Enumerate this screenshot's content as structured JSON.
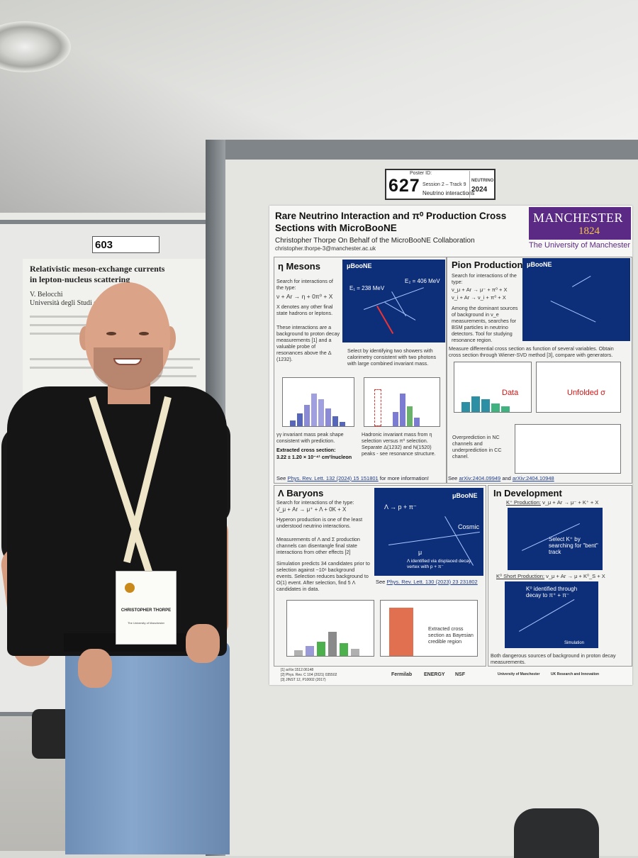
{
  "poster_board": {
    "poster_id_label": "Poster ID:",
    "poster_id": "627",
    "session": "Session 2 – Track 9",
    "track": "Neutrino interactions",
    "conference_logo_text": "NEUTRINO",
    "conference_logo_year": "2024"
  },
  "left_board": {
    "poster_id": "603",
    "title": "Relativistic meson-exchange currents in lepton-nucleus scattering",
    "author": "V. Belocchi",
    "affiliation": "Università degli Studi di Torino"
  },
  "poster": {
    "title": "Rare Neutrino Interaction and π⁰ Production Cross Sections with MicroBooNE",
    "author": "Christopher Thorpe On Behalf of the MicroBooNE Collaboration",
    "email": "christopher.thorpe-3@manchester.ac.uk",
    "logo_name": "MANCHESTER",
    "logo_year": "1824",
    "university": "The University of Manchester",
    "eta": {
      "title": "η Mesons",
      "text1": "Search for interactions of the type:",
      "formula": "ν + Ar → η + 0π⁰ + X",
      "text2": "X denotes any other final state hadrons or leptons.",
      "text3": "These interactions are a background to proton decay measurements [1] and a valuable probe of resonances above the Δ (1232).",
      "event_label_1": "E₁ = 238 MeV",
      "event_label_2": "E₂ = 406 MeV",
      "event_caption": "Select by identifying two showers with calorimetry consistent with two photons with large combined invariant mass.",
      "plot_caption_1": "γγ invariant mass peak shape consistent with prediction.",
      "plot_caption_2": "Hadronic invariant mass from η selection versus π⁰ selection. Separate Δ(1232) and N(1520) peaks - see resonance structure.",
      "xsec_label": "Extracted cross section:",
      "xsec_value": "3.22 ± 1.20 × 10⁻⁴¹ cm²/nucleon",
      "ref_prefix": "See ",
      "ref_link": "Phys. Rev. Lett. 132 (2024) 15 151801",
      "ref_suffix": " for more information!"
    },
    "pion": {
      "title": "Pion Production",
      "text1": "Search for interactions of the type:",
      "formula1": "ν_μ + Ar → μ⁻ + π⁰ + X",
      "formula2": "ν_i + Ar → ν_i + π⁰ + X",
      "text2": "Among the dominant sources of background in ν_e measurements, searches for BSM particles in neutrino detectors. Tool for studying resonance region.",
      "text3": "Measure differential cross section as function of several variables. Obtain cross section through Wiener-SVD method [3], compare with generators.",
      "label_data": "Data",
      "label_unfolded": "Unfolded σ",
      "text4": "Overprediction in NC channels and underprediction in CC chanel.",
      "ref_prefix": "See ",
      "ref_link1": "arXiv:2404.09949",
      "ref_mid": " and ",
      "ref_link2": "arXiv:2404.10948"
    },
    "lambda": {
      "title": "Λ Baryons",
      "text1": "Search for interactions of the type:",
      "formula": "ν̄_μ + Ar → μ⁺ + Λ + 0K + X",
      "text2": "Hyperon production is one of the least understood neutrino interactions.",
      "text3": "Measurements of Λ and Σ production channels can disentangle final state interactions from other effects [2]",
      "text4": "Simulation predicts 34 candidates prior to selection against ~10⁶ background events. Selection reduces background to O(1) event. After selection, find 5 Λ candidates in data.",
      "event_label_decay": "Λ → p + π⁻",
      "event_label_cosmic": "Cosmic",
      "event_label_mu": "μ",
      "event_caption": "Λ identified via displaced decay vertex with p + π⁻",
      "ref_prefix": "See ",
      "ref_link": "Phys. Rev. Lett. 130 (2023) 23 231802",
      "plot_caption": "Extracted cross section as Bayesian credible region"
    },
    "dev": {
      "title": "In Development",
      "k_prod_label": "K⁺ Production:",
      "k_prod_formula": "ν_μ + Ar → μ⁻ + K⁺ + X",
      "k_event_text": "Select K⁺ by searching for \"bent\" track",
      "ks_prod_label": "K⁰ Short Production:",
      "ks_prod_formula": "ν_μ + Ar → μ + K⁰_S + X",
      "ks_event_text": "K⁰ identified through decay to π⁺ + π⁻",
      "ks_event_sim": "Simulation",
      "text": "Both dangerous sources of background in proton decay measurements."
    },
    "footer_refs": [
      "[1] arXiv:1512.06148",
      "[2] Phys. Rev. C 104 (2021) 035502",
      "[3] JINST 12, P10002 (2017)"
    ],
    "footer_logos": [
      "Fermilab",
      "ENERGY",
      "NSF",
      "University of Manchester",
      "UK Research and Innovation"
    ]
  },
  "person_badge": {
    "name": "CHRISTOPHER THORPE",
    "org": "The University of Manchester"
  },
  "event_logo": "μBooNE"
}
